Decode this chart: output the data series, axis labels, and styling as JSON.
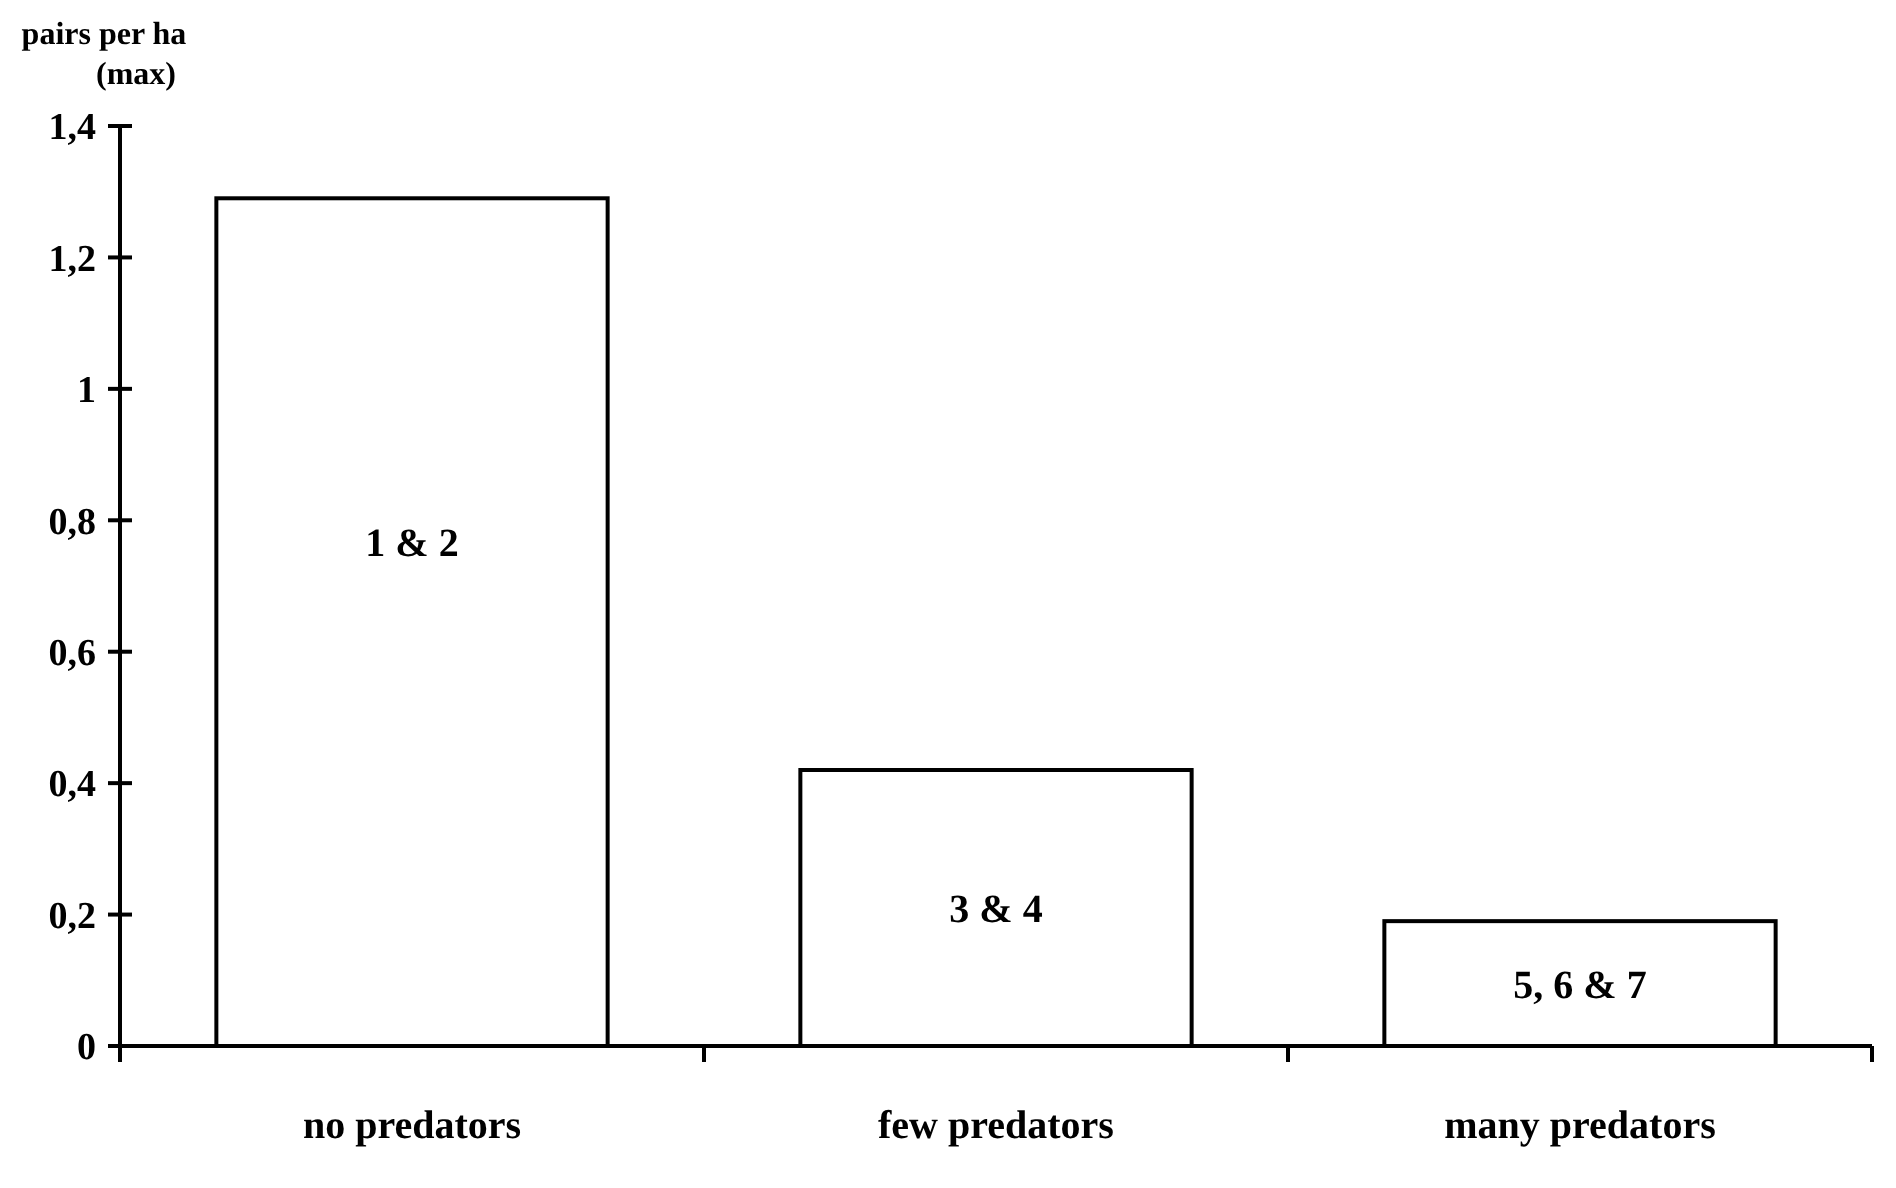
{
  "chart_data": {
    "type": "bar",
    "ylabel": "pairs per ha\n(max)",
    "categories": [
      "no predators",
      "few predators",
      "many predators"
    ],
    "values": [
      1.29,
      0.42,
      0.19
    ],
    "color": "#ffffff",
    "ylim": [
      0,
      1.4
    ],
    "yticks": [
      0,
      {
        "value": 0.2,
        "label": "0,2"
      },
      {
        "value": 0.4,
        "label": "0,4"
      },
      {
        "value": 0.6,
        "label": "0,6"
      },
      {
        "value": 0.8,
        "label": "0,8"
      },
      1,
      {
        "value": 1.2,
        "label": "1,2"
      },
      {
        "value": 1.4,
        "label": "1,4"
      }
    ],
    "grid": false,
    "annotations": [
      "1 & 2",
      "3 & 4",
      "5, 6 & 7"
    ]
  }
}
